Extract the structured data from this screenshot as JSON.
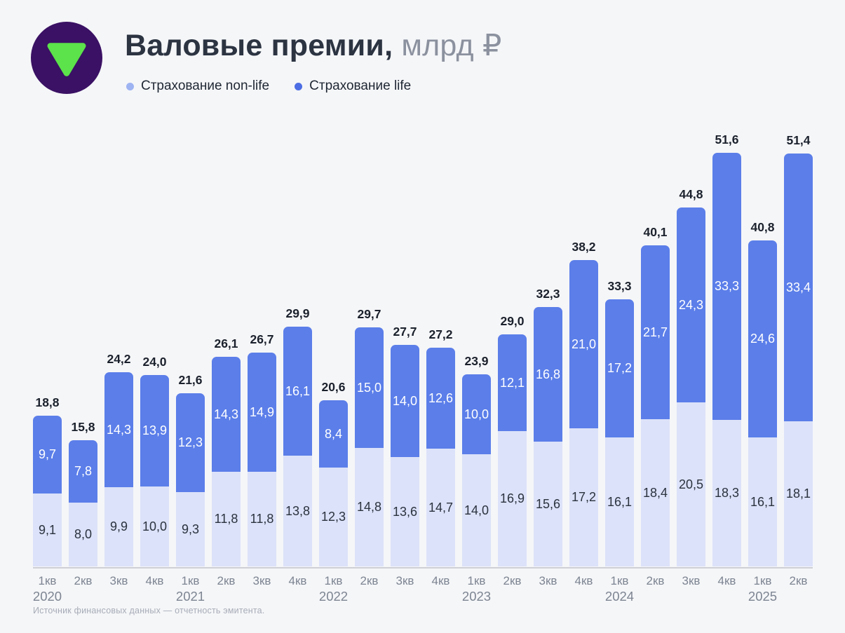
{
  "header": {
    "logo": {
      "icon": "down-triangle-icon",
      "circle_color": "#3a1164",
      "triangle_color": "#5ce24b"
    },
    "title": "Валовые премии,",
    "unit": "млрд ₽",
    "legend": [
      {
        "label": "Страхование non-life",
        "color": "#9db3f2"
      },
      {
        "label": "Страхование life",
        "color": "#4c6de3"
      }
    ]
  },
  "footer": {
    "source_note": "Источник финансовых данных — отчетность эмитента."
  },
  "chart_data": {
    "type": "bar",
    "stacked": true,
    "title": "Валовые премии, млрд ₽",
    "value_unit": "млрд ₽",
    "decimal_separator": ",",
    "legend_position": "top-left",
    "grid": false,
    "ylim": [
      0,
      51.6
    ],
    "x_ticks": [
      {
        "quarter": "1кв",
        "year": "2020"
      },
      {
        "quarter": "2кв"
      },
      {
        "quarter": "3кв"
      },
      {
        "quarter": "4кв"
      },
      {
        "quarter": "1кв",
        "year": "2021"
      },
      {
        "quarter": "2кв"
      },
      {
        "quarter": "3кв"
      },
      {
        "quarter": "4кв"
      },
      {
        "quarter": "1кв",
        "year": "2022"
      },
      {
        "quarter": "2кв"
      },
      {
        "quarter": "3кв"
      },
      {
        "quarter": "4кв"
      },
      {
        "quarter": "1кв",
        "year": "2023"
      },
      {
        "quarter": "2кв"
      },
      {
        "quarter": "3кв"
      },
      {
        "quarter": "4кв"
      },
      {
        "quarter": "1кв",
        "year": "2024"
      },
      {
        "quarter": "2кв"
      },
      {
        "quarter": "3кв"
      },
      {
        "quarter": "4кв"
      },
      {
        "quarter": "1кв",
        "year": "2025"
      },
      {
        "quarter": "2кв"
      }
    ],
    "series": [
      {
        "name": "Страхование non-life",
        "color": "#dce2f9",
        "label_color": "#2b323e",
        "values": [
          9.1,
          8.0,
          9.9,
          10.0,
          9.3,
          11.8,
          11.8,
          13.8,
          12.3,
          14.8,
          13.6,
          14.7,
          14.0,
          16.9,
          15.6,
          17.2,
          16.1,
          18.4,
          20.5,
          18.3,
          16.1,
          18.1
        ]
      },
      {
        "name": "Страхование life",
        "color": "#5b7ee9",
        "label_color": "#ffffff",
        "values": [
          9.7,
          7.8,
          14.3,
          13.9,
          12.3,
          14.3,
          14.9,
          16.1,
          8.4,
          15.0,
          14.0,
          12.6,
          10.0,
          12.1,
          16.8,
          21.0,
          17.2,
          21.7,
          24.3,
          33.3,
          24.6,
          33.4
        ]
      }
    ],
    "totals": [
      18.8,
      15.8,
      24.2,
      24.0,
      21.6,
      26.1,
      26.7,
      29.9,
      20.6,
      29.7,
      27.7,
      27.2,
      23.9,
      29.0,
      32.3,
      38.2,
      33.3,
      40.1,
      44.8,
      51.6,
      40.8,
      51.4
    ]
  }
}
